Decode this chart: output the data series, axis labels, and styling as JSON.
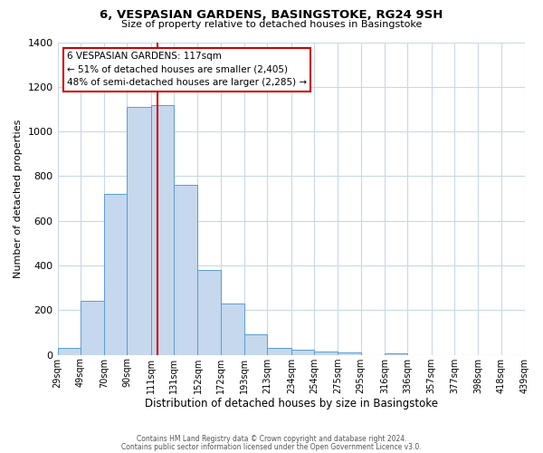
{
  "title": "6, VESPASIAN GARDENS, BASINGSTOKE, RG24 9SH",
  "subtitle": "Size of property relative to detached houses in Basingstoke",
  "xlabel": "Distribution of detached houses by size in Basingstoke",
  "ylabel": "Number of detached properties",
  "bar_values": [
    30,
    240,
    720,
    1110,
    1120,
    760,
    380,
    230,
    90,
    30,
    25,
    15,
    10,
    0,
    5,
    0,
    0,
    0,
    0,
    0
  ],
  "bin_edges": [
    29,
    49,
    70,
    90,
    111,
    131,
    152,
    172,
    193,
    213,
    234,
    254,
    275,
    295,
    316,
    336,
    357,
    377,
    398,
    418,
    439
  ],
  "bin_labels": [
    "29sqm",
    "49sqm",
    "70sqm",
    "90sqm",
    "111sqm",
    "131sqm",
    "152sqm",
    "172sqm",
    "193sqm",
    "213sqm",
    "234sqm",
    "254sqm",
    "275sqm",
    "295sqm",
    "316sqm",
    "336sqm",
    "357sqm",
    "377sqm",
    "398sqm",
    "418sqm",
    "439sqm"
  ],
  "bar_color": "#c5d8ed",
  "bar_edge_color": "#5b9bd5",
  "vline_x": 117,
  "vline_color": "#cc0000",
  "annotation_text": "6 VESPASIAN GARDENS: 117sqm\n← 51% of detached houses are smaller (2,405)\n48% of semi-detached houses are larger (2,285) →",
  "annotation_box_edge": "#cc0000",
  "ylim": [
    0,
    1400
  ],
  "yticks": [
    0,
    200,
    400,
    600,
    800,
    1000,
    1200,
    1400
  ],
  "footer_line1": "Contains HM Land Registry data © Crown copyright and database right 2024.",
  "footer_line2": "Contains public sector information licensed under the Open Government Licence v3.0.",
  "background_color": "#ffffff",
  "grid_color": "#c8d8e8",
  "fig_width": 6.0,
  "fig_height": 5.0,
  "fig_dpi": 100
}
